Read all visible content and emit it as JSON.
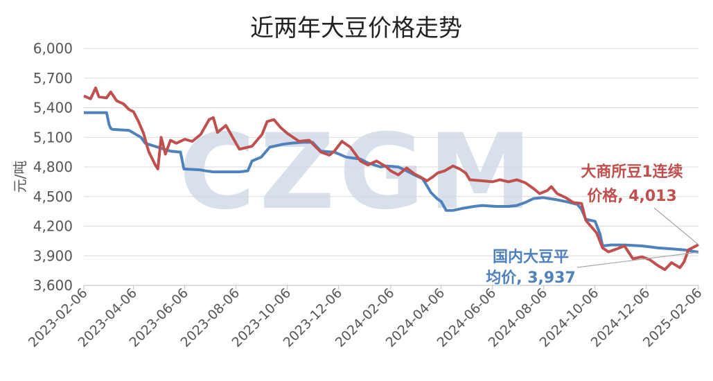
{
  "chart_data": {
    "type": "line",
    "title": "近两年大豆价格走势",
    "ylabel": "元/吨",
    "xlabel": "",
    "ylim": [
      3600,
      6000
    ],
    "yticks": [
      "3,600",
      "3,900",
      "4,200",
      "4,500",
      "4,800",
      "5,100",
      "5,400",
      "5,700",
      "6,000"
    ],
    "xticks": [
      "2023-02-06",
      "2023-04-06",
      "2023-06-06",
      "2023-08-06",
      "2023-10-06",
      "2023-12-06",
      "2024-02-06",
      "2024-04-06",
      "2024-06-06",
      "2024-08-06",
      "2024-10-06",
      "2024-12-06",
      "2025-02-06"
    ],
    "xlim": [
      "2023-02-06",
      "2025-02-06"
    ],
    "grid": true,
    "watermark": "CZGM",
    "series": [
      {
        "name": "国内大豆平均价",
        "color": "#4f81bd",
        "annotation": [
          "国内大豆平",
          "均价, 3,937"
        ],
        "points": [
          [
            "2023-02-06",
            5350
          ],
          [
            "2023-03-05",
            5350
          ],
          [
            "2023-03-08",
            5230
          ],
          [
            "2023-03-10",
            5190
          ],
          [
            "2023-03-12",
            5180
          ],
          [
            "2023-04-01",
            5170
          ],
          [
            "2023-04-15",
            5100
          ],
          [
            "2023-04-20",
            5040
          ],
          [
            "2023-05-05",
            5000
          ],
          [
            "2023-05-20",
            4960
          ],
          [
            "2023-06-01",
            4950
          ],
          [
            "2023-06-05",
            4780
          ],
          [
            "2023-06-25",
            4770
          ],
          [
            "2023-07-01",
            4760
          ],
          [
            "2023-07-10",
            4750
          ],
          [
            "2023-08-10",
            4750
          ],
          [
            "2023-08-20",
            4760
          ],
          [
            "2023-08-25",
            4860
          ],
          [
            "2023-09-05",
            4900
          ],
          [
            "2023-09-15",
            5000
          ],
          [
            "2023-10-01",
            5030
          ],
          [
            "2023-10-10",
            5040
          ],
          [
            "2023-10-25",
            5050
          ],
          [
            "2023-11-05",
            5050
          ],
          [
            "2023-11-15",
            4960
          ],
          [
            "2023-12-01",
            4950
          ],
          [
            "2023-12-15",
            4900
          ],
          [
            "2024-01-01",
            4880
          ],
          [
            "2024-01-10",
            4840
          ],
          [
            "2024-01-25",
            4800
          ],
          [
            "2024-02-01",
            4810
          ],
          [
            "2024-02-15",
            4800
          ],
          [
            "2024-02-25",
            4760
          ],
          [
            "2024-03-05",
            4720
          ],
          [
            "2024-03-15",
            4680
          ],
          [
            "2024-03-20",
            4610
          ],
          [
            "2024-03-25",
            4540
          ],
          [
            "2024-04-01",
            4480
          ],
          [
            "2024-04-06",
            4450
          ],
          [
            "2024-04-12",
            4360
          ],
          [
            "2024-04-20",
            4360
          ],
          [
            "2024-05-01",
            4380
          ],
          [
            "2024-05-15",
            4400
          ],
          [
            "2024-05-25",
            4410
          ],
          [
            "2024-06-10",
            4400
          ],
          [
            "2024-06-25",
            4400
          ],
          [
            "2024-07-05",
            4410
          ],
          [
            "2024-07-15",
            4440
          ],
          [
            "2024-07-25",
            4480
          ],
          [
            "2024-08-05",
            4490
          ],
          [
            "2024-08-20",
            4470
          ],
          [
            "2024-09-01",
            4450
          ],
          [
            "2024-09-15",
            4420
          ],
          [
            "2024-09-20",
            4370
          ],
          [
            "2024-09-25",
            4270
          ],
          [
            "2024-10-06",
            4250
          ],
          [
            "2024-10-12",
            4120
          ],
          [
            "2024-10-15",
            4000
          ],
          [
            "2024-10-25",
            4010
          ],
          [
            "2024-11-10",
            4010
          ],
          [
            "2024-12-01",
            4000
          ],
          [
            "2024-12-20",
            3980
          ],
          [
            "2025-01-05",
            3970
          ],
          [
            "2025-01-20",
            3960
          ],
          [
            "2025-02-06",
            3937
          ]
        ]
      },
      {
        "name": "大商所豆1连续价格",
        "color": "#c0504d",
        "annotation": [
          "大商所豆1连续",
          "价格, 4,013"
        ],
        "points": [
          [
            "2023-02-06",
            5520
          ],
          [
            "2023-02-14",
            5490
          ],
          [
            "2023-02-20",
            5600
          ],
          [
            "2023-02-24",
            5510
          ],
          [
            "2023-03-05",
            5500
          ],
          [
            "2023-03-10",
            5560
          ],
          [
            "2023-03-17",
            5470
          ],
          [
            "2023-03-25",
            5440
          ],
          [
            "2023-04-01",
            5380
          ],
          [
            "2023-04-06",
            5360
          ],
          [
            "2023-04-12",
            5260
          ],
          [
            "2023-04-18",
            5140
          ],
          [
            "2023-04-24",
            4960
          ],
          [
            "2023-05-02",
            4820
          ],
          [
            "2023-05-05",
            4780
          ],
          [
            "2023-05-09",
            5100
          ],
          [
            "2023-05-14",
            4930
          ],
          [
            "2023-05-20",
            5070
          ],
          [
            "2023-05-27",
            5040
          ],
          [
            "2023-06-06",
            5080
          ],
          [
            "2023-06-15",
            5060
          ],
          [
            "2023-06-25",
            5130
          ],
          [
            "2023-07-05",
            5280
          ],
          [
            "2023-07-10",
            5300
          ],
          [
            "2023-07-15",
            5150
          ],
          [
            "2023-07-25",
            5220
          ],
          [
            "2023-08-02",
            5100
          ],
          [
            "2023-08-10",
            4980
          ],
          [
            "2023-08-25",
            5010
          ],
          [
            "2023-09-06",
            5130
          ],
          [
            "2023-09-12",
            5260
          ],
          [
            "2023-09-20",
            5280
          ],
          [
            "2023-09-28",
            5200
          ],
          [
            "2023-10-06",
            5140
          ],
          [
            "2023-10-20",
            5060
          ],
          [
            "2023-11-01",
            5070
          ],
          [
            "2023-11-15",
            4950
          ],
          [
            "2023-11-25",
            4920
          ],
          [
            "2023-12-01",
            4960
          ],
          [
            "2023-12-10",
            5060
          ],
          [
            "2023-12-20",
            5000
          ],
          [
            "2024-01-01",
            4860
          ],
          [
            "2024-01-10",
            4820
          ],
          [
            "2024-01-20",
            4860
          ],
          [
            "2024-02-01",
            4800
          ],
          [
            "2024-02-06",
            4760
          ],
          [
            "2024-02-15",
            4720
          ],
          [
            "2024-02-25",
            4790
          ],
          [
            "2024-03-05",
            4730
          ],
          [
            "2024-03-12",
            4700
          ],
          [
            "2024-03-20",
            4660
          ],
          [
            "2024-03-27",
            4700
          ],
          [
            "2024-04-02",
            4740
          ],
          [
            "2024-04-10",
            4760
          ],
          [
            "2024-04-20",
            4810
          ],
          [
            "2024-04-28",
            4780
          ],
          [
            "2024-05-05",
            4740
          ],
          [
            "2024-05-10",
            4670
          ],
          [
            "2024-05-25",
            4660
          ],
          [
            "2024-06-06",
            4650
          ],
          [
            "2024-06-15",
            4670
          ],
          [
            "2024-06-25",
            4650
          ],
          [
            "2024-07-05",
            4670
          ],
          [
            "2024-07-15",
            4640
          ],
          [
            "2024-07-25",
            4580
          ],
          [
            "2024-08-01",
            4530
          ],
          [
            "2024-08-10",
            4560
          ],
          [
            "2024-08-15",
            4600
          ],
          [
            "2024-08-22",
            4530
          ],
          [
            "2024-09-01",
            4490
          ],
          [
            "2024-09-10",
            4440
          ],
          [
            "2024-09-20",
            4430
          ],
          [
            "2024-09-25",
            4260
          ],
          [
            "2024-10-01",
            4200
          ],
          [
            "2024-10-08",
            4130
          ],
          [
            "2024-10-15",
            3980
          ],
          [
            "2024-10-22",
            3940
          ],
          [
            "2024-11-01",
            3970
          ],
          [
            "2024-11-10",
            4000
          ],
          [
            "2024-11-20",
            3870
          ],
          [
            "2024-12-01",
            3890
          ],
          [
            "2024-12-10",
            3860
          ],
          [
            "2024-12-20",
            3800
          ],
          [
            "2024-12-28",
            3760
          ],
          [
            "2025-01-05",
            3830
          ],
          [
            "2025-01-15",
            3780
          ],
          [
            "2025-01-20",
            3840
          ],
          [
            "2025-01-25",
            3960
          ],
          [
            "2025-02-01",
            3990
          ],
          [
            "2025-02-06",
            4013
          ]
        ]
      }
    ]
  }
}
